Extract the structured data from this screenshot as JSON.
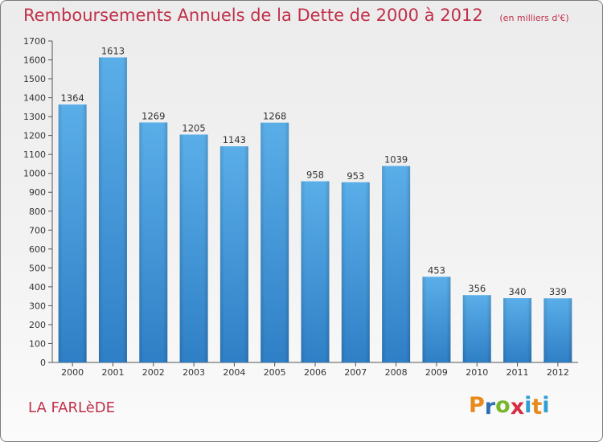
{
  "header": {
    "title": "Remboursements Annuels de la Dette de 2000 à 2012",
    "unit": "(en milliers d'€)"
  },
  "footer": {
    "city": "LA FARLèDE",
    "logo_letters": [
      "P",
      "r",
      "o",
      "x",
      "i",
      "t",
      "i"
    ],
    "logo_colors": [
      "#e98a1d",
      "#2e6fb6",
      "#7ab62d",
      "#d62f45",
      "#2e9fd3",
      "#e98a1d",
      "#2e9fd3"
    ]
  },
  "colors": {
    "bar_top": "#5aaee8",
    "bar_bottom": "#2f7fc6",
    "title": "#c0304a"
  },
  "chart_data": {
    "type": "bar",
    "title": "Remboursements Annuels de la Dette de 2000 à 2012",
    "xlabel": "",
    "ylabel": "",
    "categories": [
      "2000",
      "2001",
      "2002",
      "2003",
      "2004",
      "2005",
      "2006",
      "2007",
      "2008",
      "2009",
      "2010",
      "2011",
      "2012"
    ],
    "values": [
      1364,
      1613,
      1269,
      1205,
      1143,
      1268,
      958,
      953,
      1039,
      453,
      356,
      340,
      339
    ],
    "ylim": [
      0,
      1700
    ],
    "yticks": [
      0,
      100,
      200,
      300,
      400,
      500,
      600,
      700,
      800,
      900,
      1000,
      1100,
      1200,
      1300,
      1400,
      1500,
      1600,
      1700
    ],
    "grid": false,
    "data_labels": true
  }
}
